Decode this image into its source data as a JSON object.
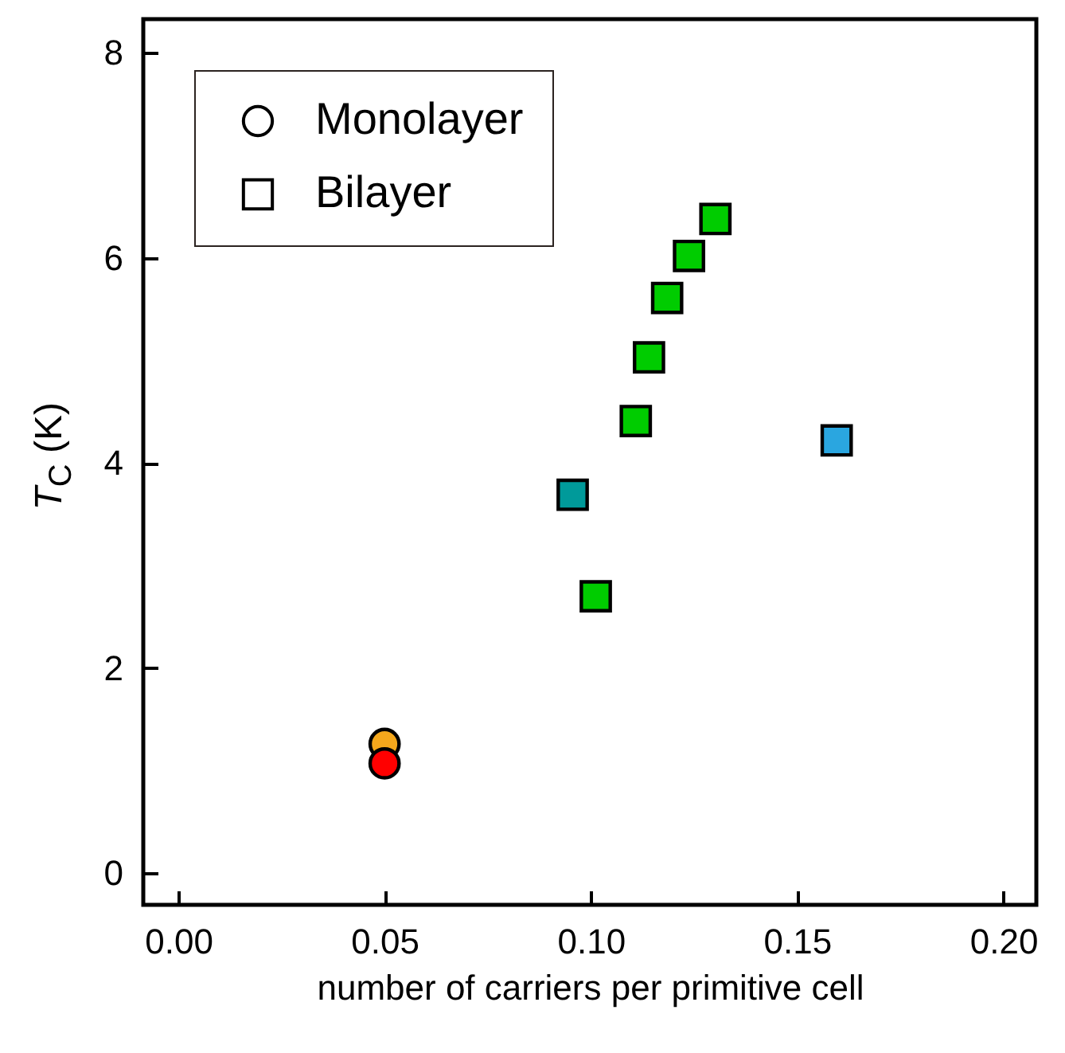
{
  "chart_data": {
    "type": "scatter",
    "xlabel": "number of carriers per primitive cell",
    "ylabel": "T$_{C}$ (K)",
    "xlim": [
      -0.0085,
      0.208
    ],
    "xticks": [
      {
        "value": 0,
        "label": "0.00"
      },
      {
        "value": 0.05,
        "label": "0.05"
      },
      {
        "value": 0.1,
        "label": "0.10"
      },
      {
        "value": 0.15,
        "label": "0.15"
      },
      {
        "value": 0.2,
        "label": "0.20"
      }
    ],
    "ylim": [
      -0.31,
      8.33
    ],
    "yticks": [
      0,
      2,
      4,
      6,
      8
    ],
    "grid": false,
    "legend": "top left",
    "series": [
      {
        "name": "Monolayer",
        "marker": "circle",
        "x": [
          0.05,
          0.05
        ],
        "values": [
          1.26,
          1.07
        ],
        "colors": [
          "#f5a81c",
          "#ff0000"
        ]
      },
      {
        "name": "Bilayer",
        "marker": "square",
        "x": [
          0.0956,
          0.1012,
          0.1109,
          0.1141,
          0.1185,
          0.1238,
          0.1302,
          0.1596
        ],
        "values": [
          3.69,
          2.7,
          4.41,
          5.03,
          5.61,
          6.02,
          6.38,
          4.22
        ],
        "colors": [
          "#009a9a",
          "#00cc00",
          "#00cc00",
          "#00cc00",
          "#00cc00",
          "#00cc00",
          "#00cc00",
          "#2aa6e0"
        ]
      }
    ]
  }
}
